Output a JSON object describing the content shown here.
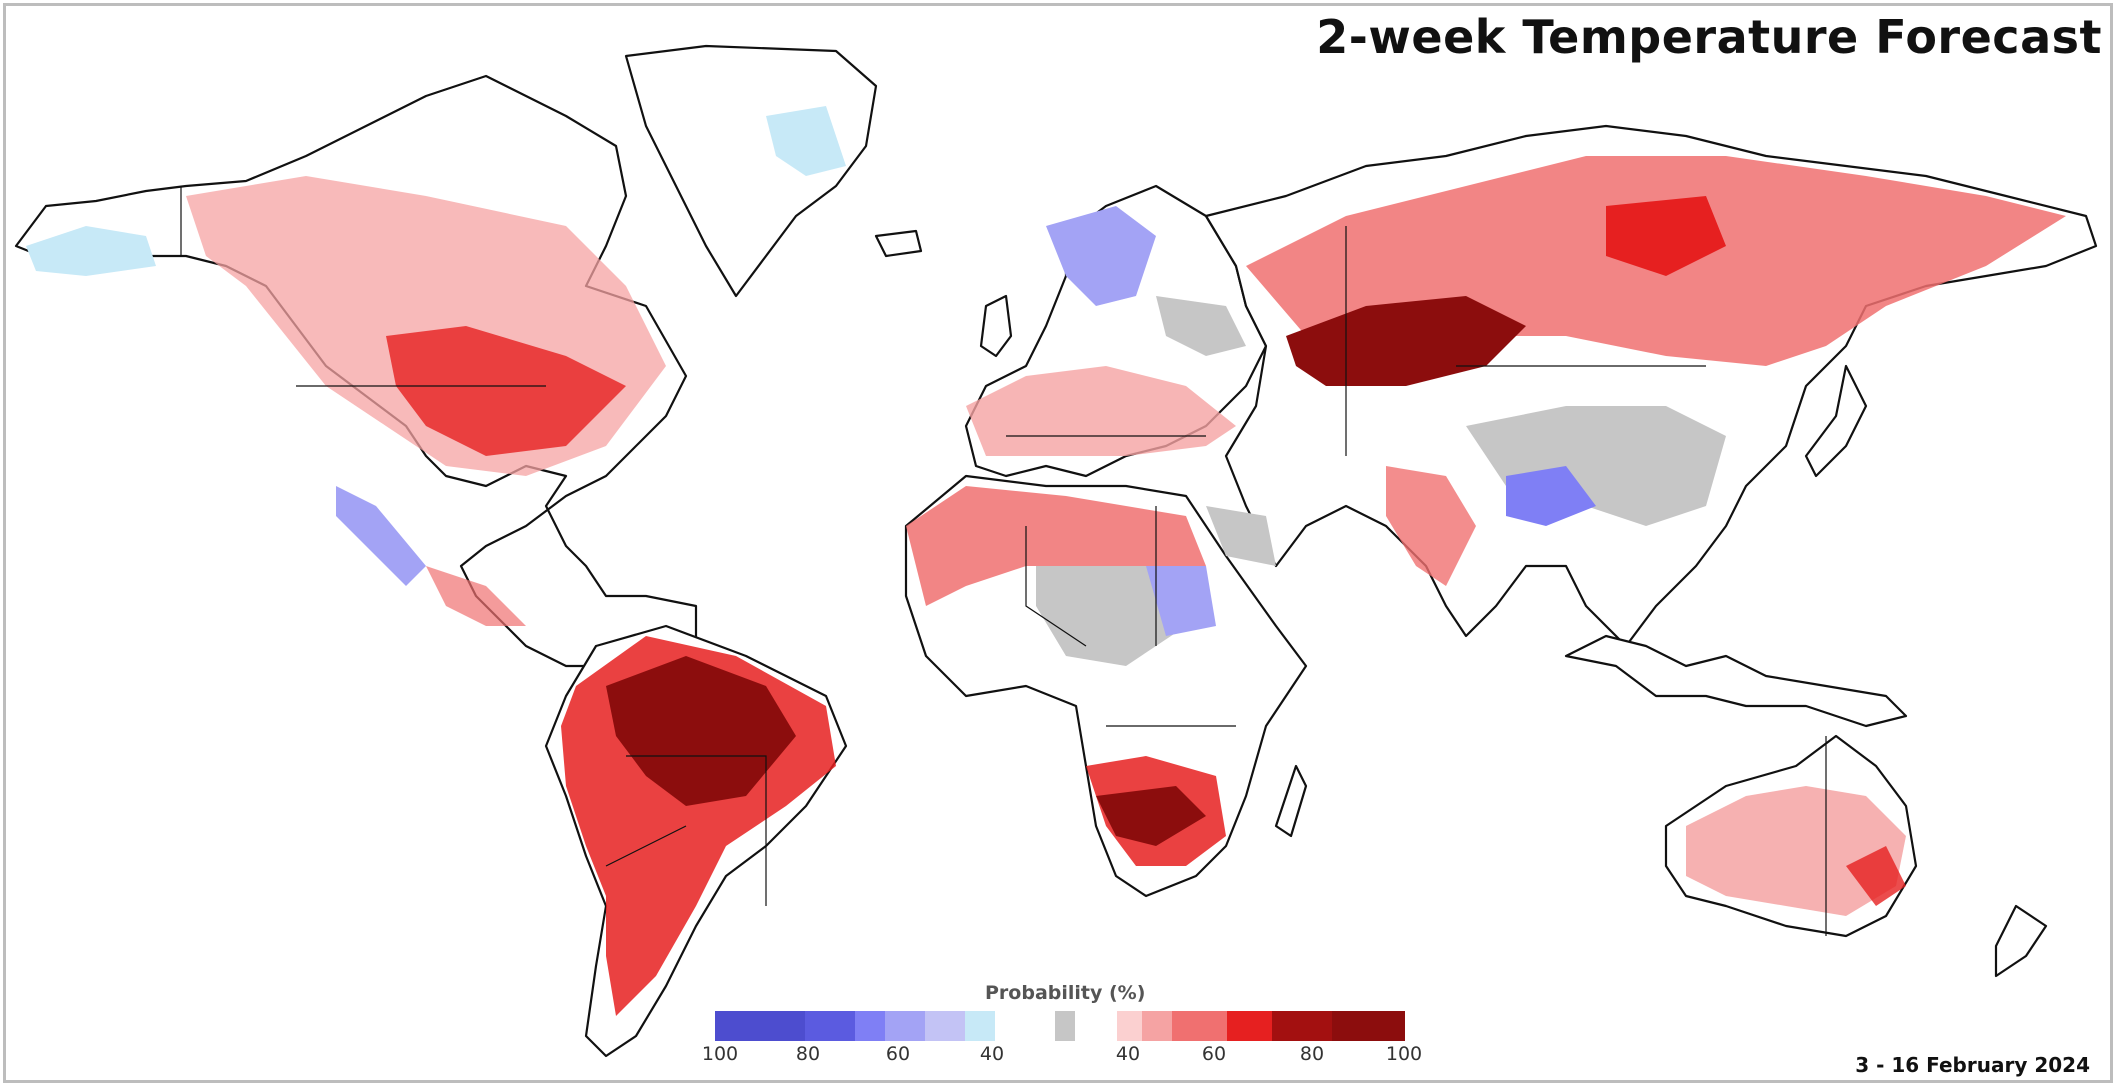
{
  "title": "2-week Temperature Forecast",
  "date_range": "3 - 16 February 2024",
  "legend": {
    "title": "Probability (%)",
    "below_ticks": [
      "100",
      "80",
      "60",
      "40"
    ],
    "above_ticks": [
      "40",
      "60",
      "80",
      "100"
    ]
  },
  "colors": {
    "below": [
      "#4d4dcf",
      "#5b5be0",
      "#7f7ff5",
      "#a3a3f5",
      "#c3c3f5",
      "#c7e9f7"
    ],
    "normal": "#c6c6c6",
    "above": [
      "#fbd0d0",
      "#f5a3a3",
      "#f07070",
      "#e62020",
      "#a31010",
      "#8c0d0d"
    ],
    "border": "#111111",
    "land_white": "#ffffff"
  }
}
